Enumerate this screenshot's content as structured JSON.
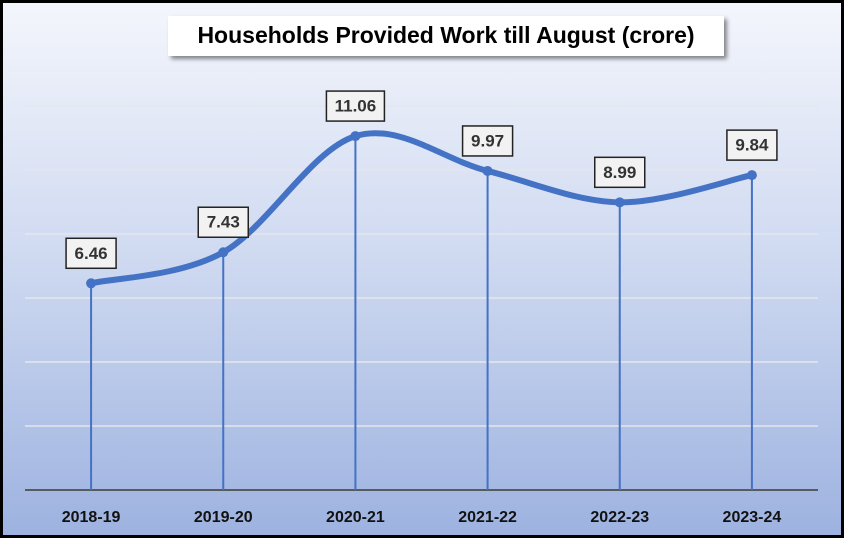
{
  "chart_data": {
    "type": "line",
    "title": "Households Provided Work till August (crore)",
    "categories": [
      "2018-19",
      "2019-20",
      "2020-21",
      "2021-22",
      "2022-23",
      "2023-24"
    ],
    "values": [
      6.46,
      7.43,
      11.06,
      9.97,
      8.99,
      9.84
    ],
    "color": "#4472c4",
    "ylim": [
      0,
      12
    ],
    "yticks": [
      0,
      2,
      4,
      6,
      8,
      10,
      12
    ],
    "grid": true,
    "drop_lines": true
  }
}
